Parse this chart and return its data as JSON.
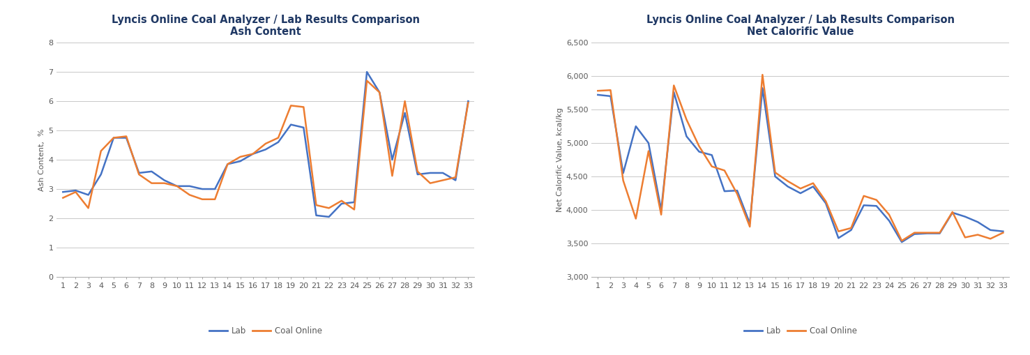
{
  "chart1": {
    "title_line1": "Lyncis Online Coal Analyzer / Lab Results Comparison",
    "title_line2": "Ash Content",
    "ylabel": "Ash Content,  %",
    "x": [
      1,
      2,
      3,
      4,
      5,
      6,
      7,
      8,
      9,
      10,
      11,
      12,
      13,
      14,
      15,
      16,
      17,
      18,
      19,
      20,
      21,
      22,
      23,
      24,
      25,
      26,
      27,
      28,
      29,
      30,
      31,
      32,
      33
    ],
    "lab": [
      2.9,
      2.95,
      2.8,
      3.5,
      4.75,
      4.75,
      3.55,
      3.6,
      3.3,
      3.1,
      3.1,
      3.0,
      3.0,
      3.85,
      3.95,
      4.2,
      4.35,
      4.6,
      5.2,
      5.1,
      2.1,
      2.05,
      2.5,
      2.55,
      7.0,
      6.3,
      4.0,
      5.6,
      3.5,
      3.55,
      3.55,
      3.3,
      6.0
    ],
    "coal_online": [
      2.7,
      2.9,
      2.35,
      4.3,
      4.75,
      4.8,
      3.5,
      3.2,
      3.2,
      3.1,
      2.8,
      2.65,
      2.65,
      3.85,
      4.1,
      4.2,
      4.55,
      4.75,
      5.85,
      5.8,
      2.45,
      2.35,
      2.6,
      2.3,
      6.7,
      6.3,
      3.45,
      6.0,
      3.6,
      3.2,
      3.3,
      3.4,
      5.95
    ],
    "ylim": [
      0,
      8
    ],
    "yticks": [
      0,
      1,
      2,
      3,
      4,
      5,
      6,
      7,
      8
    ],
    "lab_color": "#4472C4",
    "coal_color": "#ED7D31"
  },
  "chart2": {
    "title_line1": "Lyncis Online Coal Analyzer / Lab Results Comparison",
    "title_line2": "Net Calorific Value",
    "ylabel": "Net Calorific Value, kcal/kg",
    "x": [
      1,
      2,
      3,
      4,
      5,
      6,
      7,
      8,
      9,
      10,
      11,
      12,
      13,
      14,
      15,
      16,
      17,
      18,
      19,
      20,
      21,
      22,
      23,
      24,
      25,
      26,
      27,
      28,
      29,
      30,
      31,
      32,
      33
    ],
    "lab": [
      5720,
      5700,
      4550,
      5250,
      5000,
      4000,
      5760,
      5100,
      4870,
      4820,
      4280,
      4290,
      3800,
      5820,
      4500,
      4350,
      4250,
      4350,
      4100,
      3580,
      3700,
      4070,
      4060,
      3840,
      3520,
      3640,
      3650,
      3650,
      3960,
      3900,
      3820,
      3700,
      3680
    ],
    "coal_online": [
      5780,
      5790,
      4440,
      3870,
      4880,
      3930,
      5860,
      5350,
      4950,
      4650,
      4590,
      4240,
      3750,
      6020,
      4560,
      4430,
      4320,
      4400,
      4130,
      3680,
      3730,
      4210,
      4150,
      3930,
      3540,
      3660,
      3660,
      3660,
      3970,
      3590,
      3630,
      3570,
      3660
    ],
    "ylim": [
      3000,
      6500
    ],
    "yticks": [
      3000,
      3500,
      4000,
      4500,
      5000,
      5500,
      6000,
      6500
    ],
    "lab_color": "#4472C4",
    "coal_color": "#ED7D31"
  },
  "legend_lab": "Lab",
  "legend_coal": "Coal Online",
  "bg_color": "#FFFFFF",
  "grid_color": "#C8C8C8",
  "title_color": "#1F3864",
  "axis_label_color": "#595959",
  "tick_color": "#595959",
  "line_width": 1.8,
  "title_fontsize": 10.5,
  "axis_label_fontsize": 8,
  "tick_fontsize": 8,
  "legend_fontsize": 8.5
}
